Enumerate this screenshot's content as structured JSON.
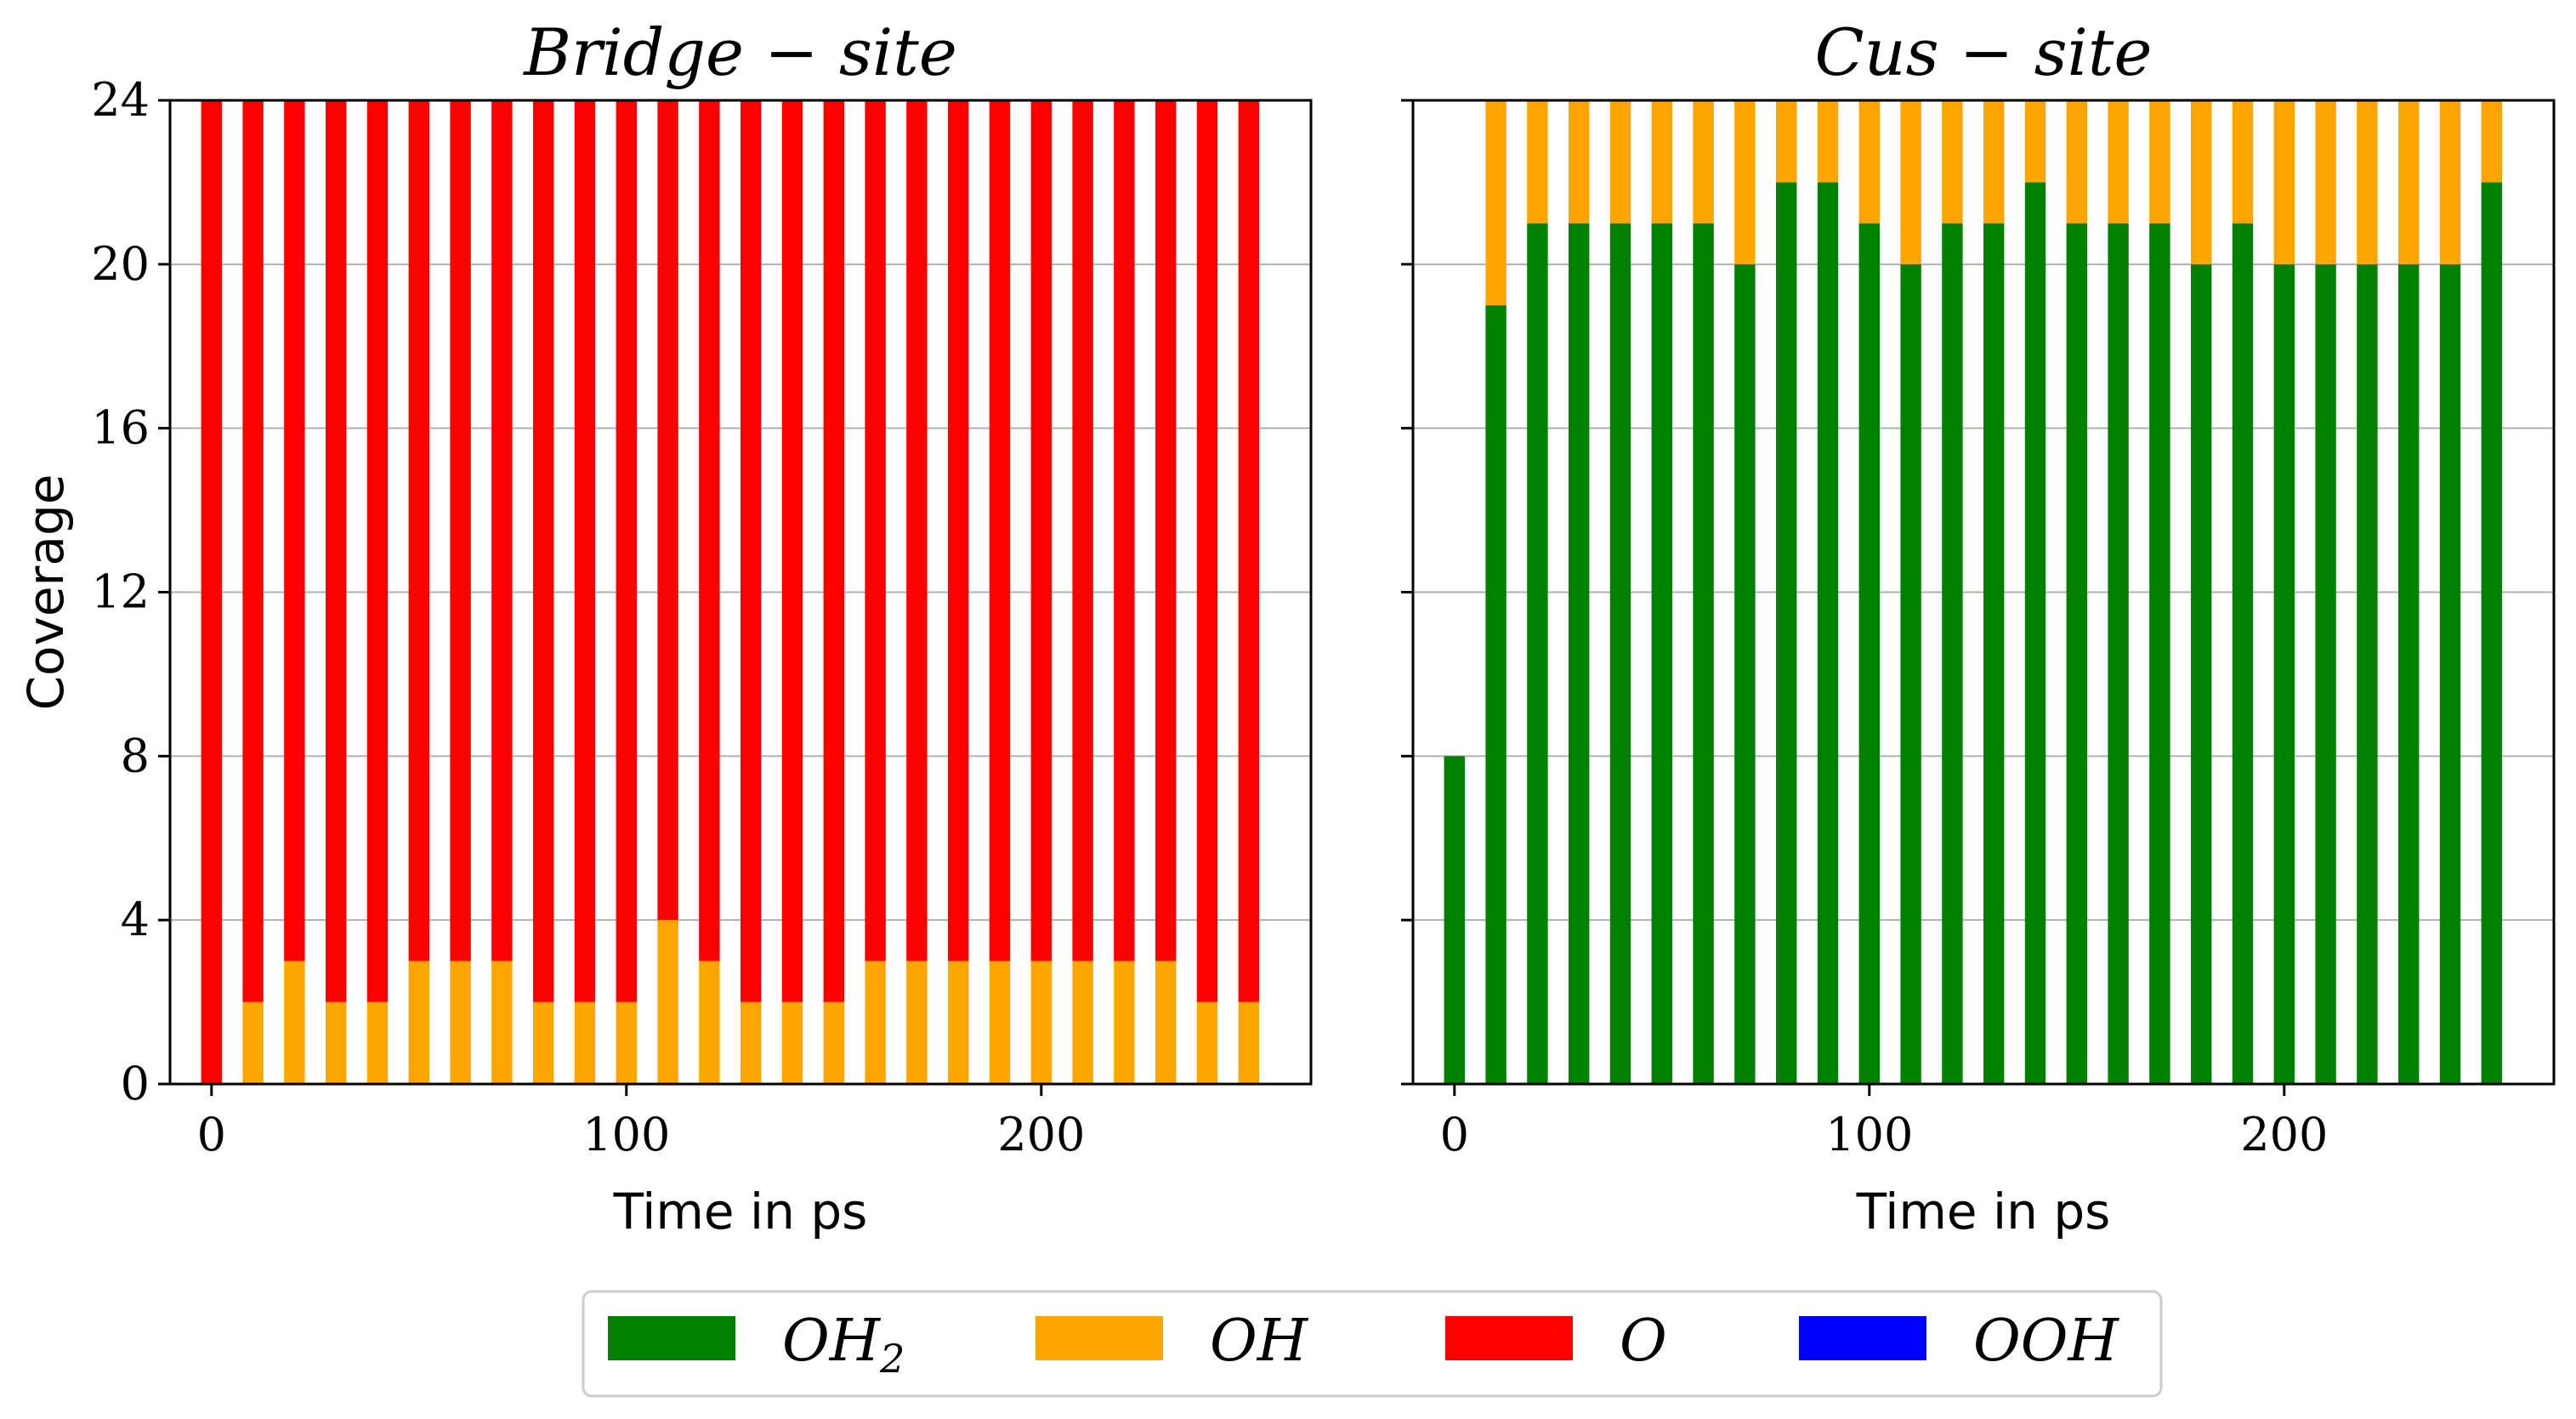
{
  "chart_data": [
    {
      "type": "bar",
      "stacked": true,
      "title": "Bridge − site",
      "xlabel": "Time in ps",
      "ylabel": "Coverage",
      "xlim": [
        -10,
        265
      ],
      "ylim": [
        0,
        24
      ],
      "xticks": [
        "0",
        "100",
        "200"
      ],
      "yticks": [
        "0",
        "4",
        "8",
        "12",
        "16",
        "20",
        "24"
      ],
      "grid": "y",
      "x": [
        0,
        10,
        20,
        30,
        40,
        50,
        60,
        70,
        80,
        90,
        100,
        110,
        120,
        130,
        140,
        150,
        160,
        170,
        180,
        190,
        200,
        210,
        220,
        230,
        240,
        250
      ],
      "series": [
        {
          "name": "OH2",
          "color": "#008000",
          "values": [
            0,
            0,
            0,
            0,
            0,
            0,
            0,
            0,
            0,
            0,
            0,
            0,
            0,
            0,
            0,
            0,
            0,
            0,
            0,
            0,
            0,
            0,
            0,
            0,
            0,
            0
          ]
        },
        {
          "name": "OH",
          "color": "#ffa500",
          "values": [
            0,
            2,
            3,
            2,
            2,
            3,
            3,
            3,
            2,
            2,
            2,
            4,
            3,
            2,
            2,
            2,
            3,
            3,
            3,
            3,
            3,
            3,
            3,
            3,
            2,
            2
          ]
        },
        {
          "name": "O",
          "color": "#ff0000",
          "values": [
            24,
            22,
            21,
            22,
            22,
            21,
            21,
            21,
            22,
            22,
            22,
            20,
            21,
            22,
            22,
            22,
            21,
            21,
            21,
            21,
            21,
            21,
            21,
            21,
            22,
            22
          ]
        },
        {
          "name": "OOH",
          "color": "#0000ff",
          "values": [
            0,
            0,
            0,
            0,
            0,
            0,
            0,
            0,
            0,
            0,
            0,
            0,
            0,
            0,
            0,
            0,
            0,
            0,
            0,
            0,
            0,
            0,
            0,
            0,
            0,
            0
          ]
        }
      ]
    },
    {
      "type": "bar",
      "stacked": true,
      "title": "Cus − site",
      "xlabel": "Time in ps",
      "ylabel": "",
      "xlim": [
        -10,
        265
      ],
      "ylim": [
        0,
        24
      ],
      "xticks": [
        "0",
        "100",
        "200"
      ],
      "yticks": [
        "",
        "",
        "",
        "",
        "",
        "",
        ""
      ],
      "grid": "y",
      "x": [
        0,
        10,
        20,
        30,
        40,
        50,
        60,
        70,
        80,
        90,
        100,
        110,
        120,
        130,
        140,
        150,
        160,
        170,
        180,
        190,
        200,
        210,
        220,
        230,
        240,
        250
      ],
      "series": [
        {
          "name": "OH2",
          "color": "#008000",
          "values": [
            8,
            19,
            21,
            21,
            21,
            21,
            21,
            20,
            22,
            22,
            21,
            20,
            21,
            21,
            22,
            21,
            21,
            21,
            20,
            21,
            20,
            20,
            20,
            20,
            20,
            22
          ]
        },
        {
          "name": "OH",
          "color": "#ffa500",
          "values": [
            0,
            5,
            3,
            3,
            3,
            3,
            3,
            4,
            2,
            2,
            3,
            4,
            3,
            3,
            2,
            3,
            3,
            3,
            4,
            3,
            4,
            4,
            4,
            4,
            4,
            2
          ]
        },
        {
          "name": "O",
          "color": "#ff0000",
          "values": [
            0,
            0,
            0,
            0,
            0,
            0,
            0,
            0,
            0,
            0,
            0,
            0,
            0,
            0,
            0,
            0,
            0,
            0,
            0,
            0,
            0,
            0,
            0,
            0,
            0,
            0
          ]
        },
        {
          "name": "OOH",
          "color": "#0000ff",
          "values": [
            0,
            0,
            0,
            0,
            0,
            0,
            0,
            0,
            0,
            0,
            0,
            0,
            0,
            0,
            0,
            0,
            0,
            0,
            0,
            0,
            0,
            0,
            0,
            0,
            0,
            0
          ]
        }
      ]
    }
  ],
  "legend": {
    "placement": "bottom-center",
    "items": [
      {
        "base": "OH",
        "sub": "2",
        "color": "#008000"
      },
      {
        "base": "OH",
        "sub": "",
        "color": "#ffa500"
      },
      {
        "base": "O",
        "sub": "",
        "color": "#ff0000"
      },
      {
        "base": "OOH",
        "sub": "",
        "color": "#0000ff"
      }
    ]
  }
}
